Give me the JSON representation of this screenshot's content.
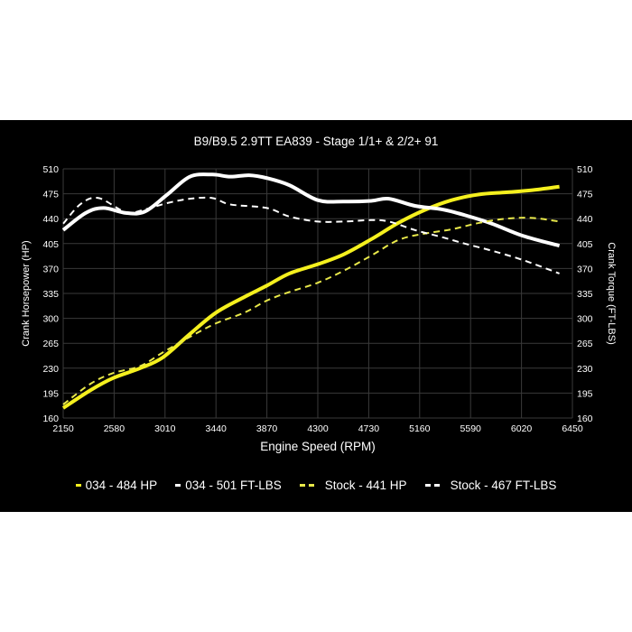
{
  "chart_data": {
    "type": "line",
    "title": "B9/B9.5 2.9TT EA839 - Stage 1/1+ & 2/2+ 91",
    "xlabel": "Engine Speed (RPM)",
    "ylabel": "Crank Horsepower (HP)",
    "ylabel_right": "Crank Torque (FT-LBS)",
    "xlim": [
      2150,
      6450
    ],
    "ylim": [
      160,
      510
    ],
    "x_ticks": [
      2150,
      2580,
      3010,
      3440,
      3870,
      4300,
      4730,
      5160,
      5590,
      6020,
      6450
    ],
    "y_ticks": [
      160,
      195,
      230,
      265,
      300,
      335,
      370,
      405,
      440,
      475,
      510
    ],
    "grid": true,
    "legend_position": "bottom",
    "x": [
      2150,
      2380,
      2570,
      2800,
      2990,
      3220,
      3440,
      3680,
      3870,
      4060,
      4300,
      4520,
      4750,
      4980,
      5200,
      5430,
      5660,
      5890,
      6110,
      6340
    ],
    "series": [
      {
        "name": "034 - 484 HP",
        "color": "#f5f01e",
        "dash": "solid",
        "values": [
          174,
          199,
          216,
          230,
          245,
          278,
          308,
          330,
          346,
          363,
          376,
          390,
          411,
          434,
          452,
          466,
          474,
          477,
          480,
          485
        ]
      },
      {
        "name": "034 - 501 FT-LBS",
        "color": "#ffffff",
        "dash": "solid",
        "x": [
          2150,
          2340,
          2490,
          2680,
          2840,
          3030,
          3220,
          3410,
          3560,
          3720,
          3870,
          4060,
          4300,
          4520,
          4750,
          4900,
          5120,
          5350,
          5540,
          5770,
          6030,
          6340
        ],
        "values": [
          424,
          448,
          455,
          448,
          450,
          474,
          499,
          502,
          499,
          501,
          497,
          487,
          466,
          464,
          465,
          468,
          458,
          453,
          445,
          433,
          416,
          402
        ]
      },
      {
        "name": "Stock - 441 HP",
        "color": "#e8e84a",
        "dash": "dashed",
        "values": [
          179,
          208,
          223,
          233,
          252,
          274,
          293,
          308,
          325,
          337,
          350,
          367,
          388,
          410,
          419,
          425,
          434,
          440,
          441,
          436
        ]
      },
      {
        "name": "Stock - 467 FT-LBS",
        "color": "#ffffff",
        "dash": "dashed",
        "x": [
          2150,
          2300,
          2450,
          2680,
          2840,
          3030,
          3220,
          3410,
          3560,
          3870,
          4060,
          4300,
          4520,
          4750,
          4900,
          5120,
          5350,
          5540,
          5770,
          6030,
          6340
        ],
        "values": [
          433,
          461,
          469,
          449,
          453,
          462,
          468,
          469,
          460,
          455,
          443,
          436,
          436,
          438,
          436,
          424,
          414,
          405,
          395,
          382,
          363
        ]
      }
    ]
  },
  "legend": [
    {
      "label": "034 - 484 HP"
    },
    {
      "label": "034 - 501 FT-LBS"
    },
    {
      "label": "Stock - 441 HP"
    },
    {
      "label": "Stock - 467 FT-LBS"
    }
  ]
}
